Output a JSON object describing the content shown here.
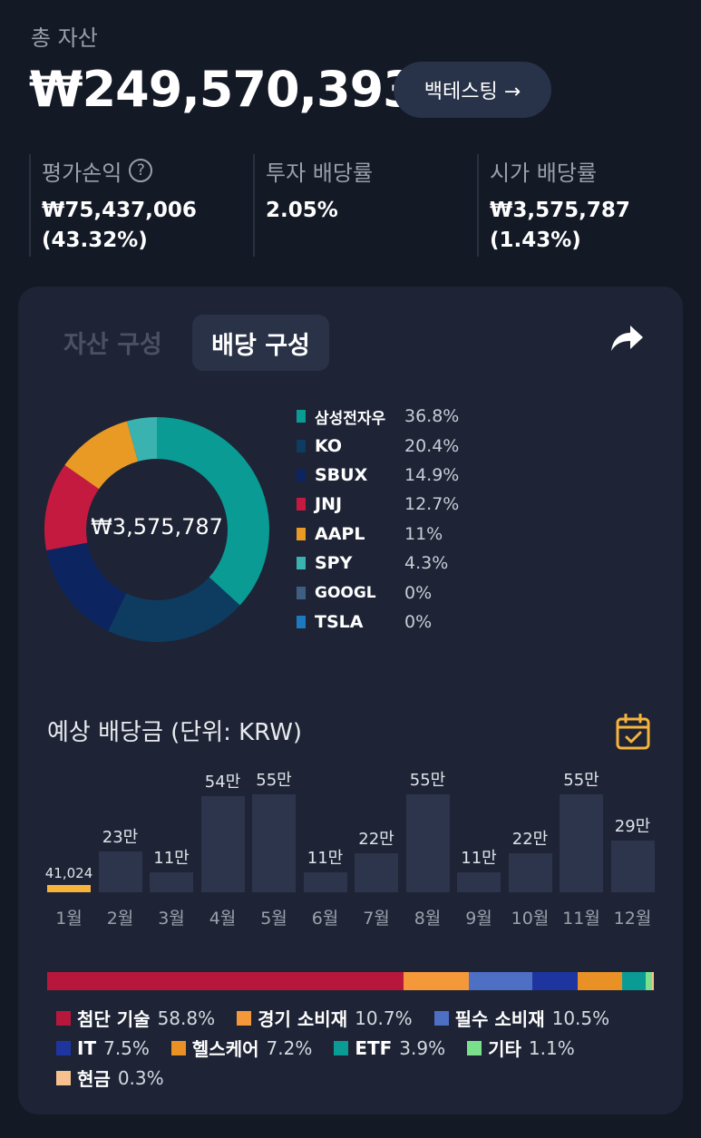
{
  "header": {
    "total_label": "총 자산",
    "total_value": "₩249,570,393",
    "backtest_label": "백테스팅 →"
  },
  "stats": [
    {
      "label": "평가손익",
      "line1": "₩75,437,006",
      "line2": "(43.32%)"
    },
    {
      "label": "투자 배당률",
      "line1": "2.05%",
      "line2": ""
    },
    {
      "label": "시가 배당률",
      "line1": "₩3,575,787",
      "line2": "(1.43%)"
    }
  ],
  "tabs": {
    "asset": "자산 구성",
    "dividend": "배당 구성"
  },
  "donut": {
    "center": "₩3,575,787",
    "items": [
      {
        "name": "삼성전자우",
        "pct": "36.8%",
        "value": 36.8,
        "color": "#0a9b94"
      },
      {
        "name": "KO",
        "pct": "20.4%",
        "value": 20.4,
        "color": "#0d3c60"
      },
      {
        "name": "SBUX",
        "pct": "14.9%",
        "value": 14.9,
        "color": "#0c2460"
      },
      {
        "name": "JNJ",
        "pct": "12.7%",
        "value": 12.7,
        "color": "#c41a40"
      },
      {
        "name": "AAPL",
        "pct": "11%",
        "value": 11,
        "color": "#e99a25"
      },
      {
        "name": "SPY",
        "pct": "4.3%",
        "value": 4.3,
        "color": "#3ab3b0"
      },
      {
        "name": "GOOGL",
        "pct": "0%",
        "value": 0,
        "color": "#3e5f82"
      },
      {
        "name": "TSLA",
        "pct": "0%",
        "value": 0,
        "color": "#1e7ac0"
      }
    ]
  },
  "forecast": {
    "title": "예상 배당금 (단위: KRW)",
    "months": [
      {
        "label": "1월",
        "display": "41,024",
        "value": 41024,
        "highlight": true
      },
      {
        "label": "2월",
        "display": "23만",
        "value": 230000
      },
      {
        "label": "3월",
        "display": "11만",
        "value": 110000
      },
      {
        "label": "4월",
        "display": "54만",
        "value": 540000
      },
      {
        "label": "5월",
        "display": "55만",
        "value": 550000
      },
      {
        "label": "6월",
        "display": "11만",
        "value": 110000
      },
      {
        "label": "7월",
        "display": "22만",
        "value": 220000
      },
      {
        "label": "8월",
        "display": "55만",
        "value": 550000
      },
      {
        "label": "9월",
        "display": "11만",
        "value": 110000
      },
      {
        "label": "10월",
        "display": "22만",
        "value": 220000
      },
      {
        "label": "11월",
        "display": "55만",
        "value": 550000
      },
      {
        "label": "12월",
        "display": "29만",
        "value": 290000
      }
    ],
    "max": 550000,
    "highlight_color": "#f6b43c",
    "bar_color": "#2c354c"
  },
  "sectors": [
    {
      "name": "첨단 기술",
      "pct": "58.8%",
      "value": 58.8,
      "color": "#b8173c"
    },
    {
      "name": "경기 소비재",
      "pct": "10.7%",
      "value": 10.7,
      "color": "#f5983a"
    },
    {
      "name": "필수 소비재",
      "pct": "10.5%",
      "value": 10.5,
      "color": "#4d6fc4"
    },
    {
      "name": "IT",
      "pct": "7.5%",
      "value": 7.5,
      "color": "#1e35a0"
    },
    {
      "name": "헬스케어",
      "pct": "7.2%",
      "value": 7.2,
      "color": "#e99125"
    },
    {
      "name": "ETF",
      "pct": "3.9%",
      "value": 3.9,
      "color": "#0a9b94"
    },
    {
      "name": "기타",
      "pct": "1.1%",
      "value": 1.1,
      "color": "#7be08c"
    },
    {
      "name": "현금",
      "pct": "0.3%",
      "value": 0.3,
      "color": "#f7c08f"
    }
  ]
}
